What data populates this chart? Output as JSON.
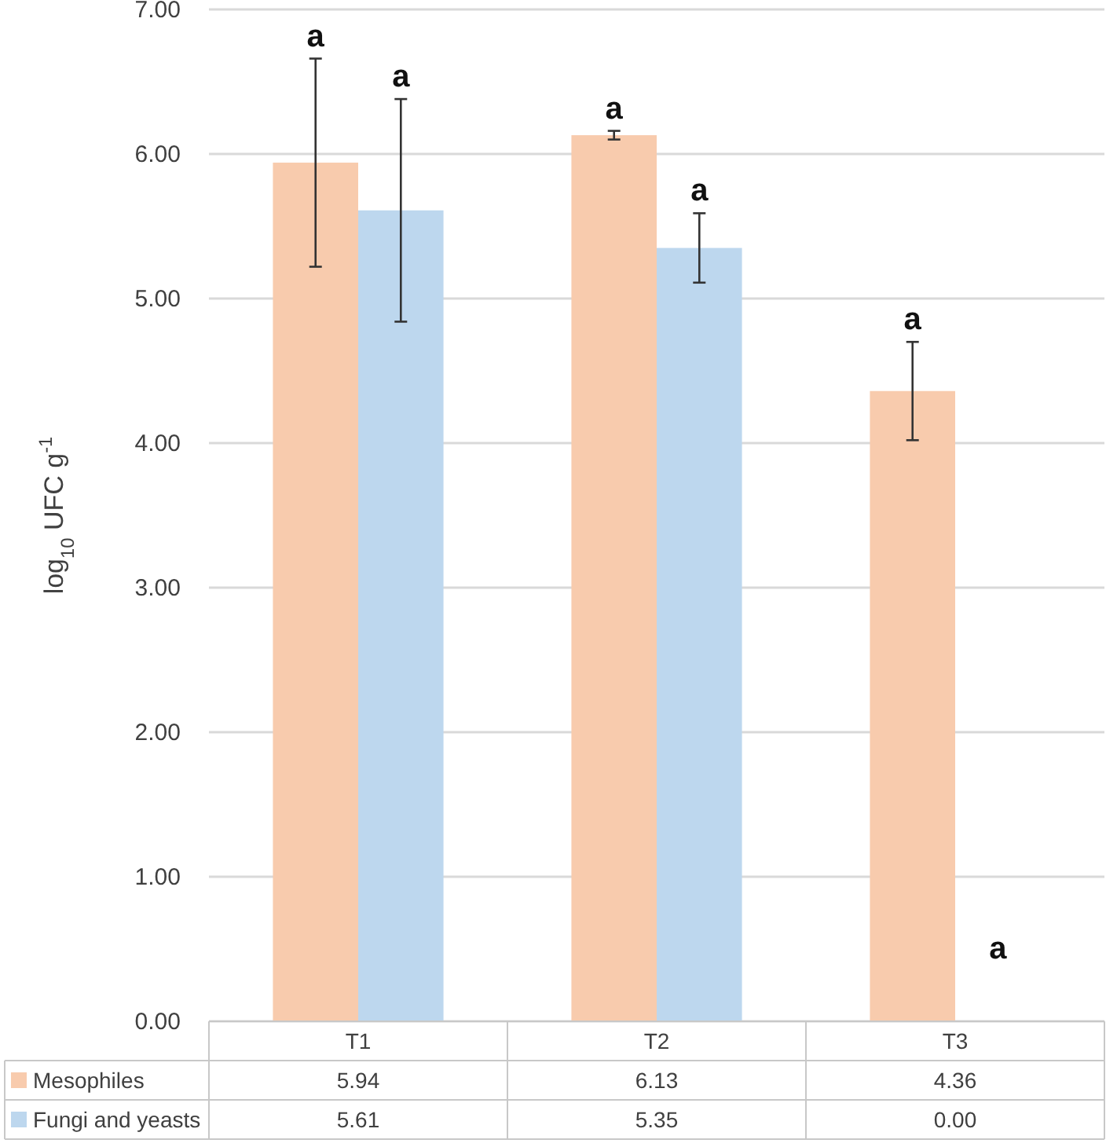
{
  "chart_data": {
    "type": "bar",
    "ylabel": "log$_{10}$ UFC g$^{-1}$",
    "categories": [
      "T1",
      "T2",
      "T3"
    ],
    "series": [
      {
        "name": "Mesophiles",
        "color": "#f8cbad",
        "values": [
          5.94,
          6.13,
          4.36
        ],
        "errors": [
          0.72,
          0.03,
          0.34
        ],
        "value_labels": [
          "5.94",
          "6.13",
          "4.36"
        ]
      },
      {
        "name": "Fungi and yeasts",
        "color": "#bdd7ee",
        "values": [
          5.61,
          5.35,
          0
        ],
        "errors": [
          0.77,
          0.24,
          null
        ],
        "value_labels": [
          "5.61",
          "5.35",
          "0.00"
        ]
      }
    ],
    "ylim": [
      0,
      7
    ],
    "yticks": [
      {
        "value": 0,
        "label": "0.00"
      },
      {
        "value": 1,
        "label": "1.00"
      },
      {
        "value": 2,
        "label": "2.00"
      },
      {
        "value": 3,
        "label": "3.00"
      },
      {
        "value": 4,
        "label": "4.00"
      },
      {
        "value": 5,
        "label": "5.00"
      },
      {
        "value": 6,
        "label": "6.00"
      },
      {
        "value": 7,
        "label": "7.00"
      }
    ],
    "grid": "y",
    "legend": "bottom",
    "annotations": [
      "a",
      "a",
      "a",
      "a",
      "a",
      "a"
    ]
  }
}
